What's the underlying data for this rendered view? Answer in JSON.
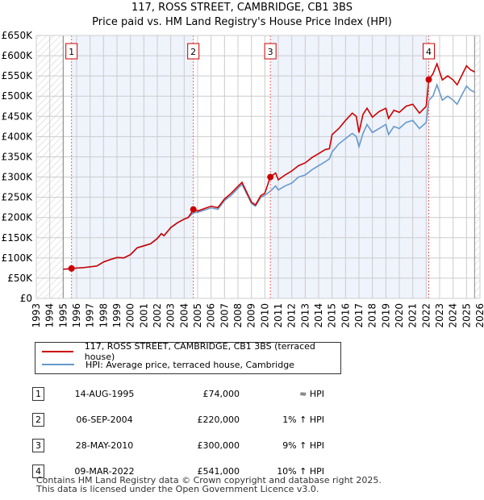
{
  "title_line1": "117, ROSS STREET, CAMBRIDGE, CB1 3BS",
  "title_line2": "Price paid vs. HM Land Registry's House Price Index (HPI)",
  "chart_data": {
    "type": "line",
    "title": "117, ROSS STREET, CAMBRIDGE, CB1 3BS — Price paid vs. HM Land Registry's House Price Index (HPI)",
    "xlim": [
      1993,
      2026
    ],
    "ylim": [
      0,
      650000
    ],
    "x_ticks": [
      "1993",
      "1994",
      "1995",
      "1996",
      "1997",
      "1998",
      "1999",
      "2000",
      "2001",
      "2002",
      "2003",
      "2004",
      "2005",
      "2006",
      "2007",
      "2008",
      "2009",
      "2010",
      "2011",
      "2012",
      "2013",
      "2014",
      "2015",
      "2016",
      "2017",
      "2018",
      "2019",
      "2020",
      "2021",
      "2022",
      "2023",
      "2024",
      "2025",
      "2026"
    ],
    "y_ticks": [
      "£0",
      "£50K",
      "£100K",
      "£150K",
      "£200K",
      "£250K",
      "£300K",
      "£350K",
      "£400K",
      "£450K",
      "£500K",
      "£550K",
      "£600K",
      "£650K"
    ],
    "grid": true,
    "data_range": [
      1995,
      2025.6
    ],
    "shaded_periods": [
      [
        1995.62,
        2004.68
      ],
      [
        2010.41,
        2022.19
      ]
    ],
    "colors": {
      "price": "#cc0000",
      "hpi": "#6699cc",
      "shade": "#eef3fc"
    },
    "series": [
      {
        "name": "117, ROSS STREET, CAMBRIDGE, CB1 3BS (terraced house)",
        "color": "#cc0000",
        "points": [
          [
            1995,
            72
          ],
          [
            1995.6,
            74
          ],
          [
            1996,
            75
          ],
          [
            1996.5,
            76
          ],
          [
            1997,
            78
          ],
          [
            1997.5,
            80
          ],
          [
            1998,
            90
          ],
          [
            1998.5,
            96
          ],
          [
            1999,
            101
          ],
          [
            1999.5,
            100
          ],
          [
            2000,
            108
          ],
          [
            2000.5,
            125
          ],
          [
            2001,
            130
          ],
          [
            2001.5,
            135
          ],
          [
            2002,
            148
          ],
          [
            2002.3,
            160
          ],
          [
            2002.5,
            155
          ],
          [
            2003,
            175
          ],
          [
            2003.5,
            187
          ],
          [
            2004,
            196
          ],
          [
            2004.3,
            200
          ],
          [
            2004.7,
            220
          ],
          [
            2005,
            216
          ],
          [
            2005.5,
            222
          ],
          [
            2006,
            228
          ],
          [
            2006.5,
            224
          ],
          [
            2007,
            246
          ],
          [
            2007.5,
            260
          ],
          [
            2008,
            277
          ],
          [
            2008.3,
            287
          ],
          [
            2008.6,
            266
          ],
          [
            2009,
            238
          ],
          [
            2009.3,
            231
          ],
          [
            2009.7,
            254
          ],
          [
            2010,
            260
          ],
          [
            2010.4,
            300
          ],
          [
            2010.8,
            310
          ],
          [
            2011,
            293
          ],
          [
            2011.5,
            305
          ],
          [
            2012,
            315
          ],
          [
            2012.5,
            328
          ],
          [
            2013,
            335
          ],
          [
            2013.5,
            348
          ],
          [
            2014,
            358
          ],
          [
            2014.5,
            368
          ],
          [
            2014.8,
            370
          ],
          [
            2015,
            405
          ],
          [
            2015.5,
            420
          ],
          [
            2016,
            440
          ],
          [
            2016.5,
            458
          ],
          [
            2016.8,
            450
          ],
          [
            2017,
            410
          ],
          [
            2017.3,
            455
          ],
          [
            2017.6,
            470
          ],
          [
            2018,
            448
          ],
          [
            2018.5,
            462
          ],
          [
            2019,
            470
          ],
          [
            2019.2,
            445
          ],
          [
            2019.6,
            465
          ],
          [
            2020,
            460
          ],
          [
            2020.5,
            475
          ],
          [
            2021,
            480
          ],
          [
            2021.5,
            458
          ],
          [
            2022,
            475
          ],
          [
            2022.2,
            541
          ],
          [
            2022.5,
            555
          ],
          [
            2022.8,
            580
          ],
          [
            2023.2,
            540
          ],
          [
            2023.6,
            550
          ],
          [
            2024,
            540
          ],
          [
            2024.3,
            528
          ],
          [
            2025,
            575
          ],
          [
            2025.3,
            565
          ],
          [
            2025.6,
            560
          ]
        ]
      },
      {
        "name": "HPI: Average price, terraced house, Cambridge",
        "color": "#6699cc",
        "points": [
          [
            1995,
            72
          ],
          [
            1995.6,
            73
          ],
          [
            1996,
            75
          ],
          [
            1996.5,
            76
          ],
          [
            1997,
            78
          ],
          [
            1997.5,
            80
          ],
          [
            1998,
            90
          ],
          [
            1998.5,
            96
          ],
          [
            1999,
            101
          ],
          [
            1999.5,
            100
          ],
          [
            2000,
            108
          ],
          [
            2000.5,
            125
          ],
          [
            2001,
            130
          ],
          [
            2001.5,
            135
          ],
          [
            2002,
            148
          ],
          [
            2002.3,
            160
          ],
          [
            2002.5,
            155
          ],
          [
            2003,
            175
          ],
          [
            2003.5,
            187
          ],
          [
            2004,
            196
          ],
          [
            2004.3,
            200
          ],
          [
            2004.7,
            212
          ],
          [
            2005,
            213
          ],
          [
            2005.5,
            218
          ],
          [
            2006,
            224
          ],
          [
            2006.5,
            220
          ],
          [
            2007,
            242
          ],
          [
            2007.5,
            255
          ],
          [
            2008,
            272
          ],
          [
            2008.3,
            282
          ],
          [
            2008.6,
            262
          ],
          [
            2009,
            235
          ],
          [
            2009.3,
            228
          ],
          [
            2009.7,
            250
          ],
          [
            2010,
            255
          ],
          [
            2010.4,
            265
          ],
          [
            2010.8,
            278
          ],
          [
            2011,
            268
          ],
          [
            2011.5,
            278
          ],
          [
            2012,
            285
          ],
          [
            2012.5,
            300
          ],
          [
            2013,
            305
          ],
          [
            2013.5,
            318
          ],
          [
            2014,
            328
          ],
          [
            2014.5,
            338
          ],
          [
            2014.8,
            345
          ],
          [
            2015,
            362
          ],
          [
            2015.5,
            382
          ],
          [
            2016,
            395
          ],
          [
            2016.5,
            408
          ],
          [
            2016.8,
            400
          ],
          [
            2017,
            375
          ],
          [
            2017.3,
            408
          ],
          [
            2017.6,
            430
          ],
          [
            2018,
            410
          ],
          [
            2018.5,
            420
          ],
          [
            2019,
            430
          ],
          [
            2019.2,
            405
          ],
          [
            2019.6,
            425
          ],
          [
            2020,
            420
          ],
          [
            2020.5,
            435
          ],
          [
            2021,
            440
          ],
          [
            2021.5,
            420
          ],
          [
            2022,
            435
          ],
          [
            2022.2,
            490
          ],
          [
            2022.5,
            500
          ],
          [
            2022.8,
            528
          ],
          [
            2023.2,
            490
          ],
          [
            2023.6,
            500
          ],
          [
            2024,
            490
          ],
          [
            2024.3,
            480
          ],
          [
            2025,
            525
          ],
          [
            2025.3,
            515
          ],
          [
            2025.6,
            510
          ]
        ]
      }
    ],
    "y_unit": "thousand GBP",
    "sales": [
      {
        "label": "1",
        "x": 1995.62,
        "value": 74
      },
      {
        "label": "2",
        "x": 2004.68,
        "value": 220
      },
      {
        "label": "3",
        "x": 2010.41,
        "value": 300
      },
      {
        "label": "4",
        "x": 2022.19,
        "value": 541
      }
    ]
  },
  "legend": {
    "price": "117, ROSS STREET, CAMBRIDGE, CB1 3BS (terraced house)",
    "hpi": "HPI: Average price, terraced house, Cambridge"
  },
  "transactions": [
    {
      "num": "1",
      "date": "14-AUG-1995",
      "price": "£74,000",
      "hpi": "≈ HPI"
    },
    {
      "num": "2",
      "date": "06-SEP-2004",
      "price": "£220,000",
      "hpi": "1% ↑ HPI"
    },
    {
      "num": "3",
      "date": "28-MAY-2010",
      "price": "£300,000",
      "hpi": "9% ↑ HPI"
    },
    {
      "num": "4",
      "date": "09-MAR-2022",
      "price": "£541,000",
      "hpi": "10% ↑ HPI"
    }
  ],
  "footer": {
    "line1": "Contains HM Land Registry data © Crown copyright and database right 2025.",
    "line2": "This data is licensed under the Open Government Licence v3.0."
  }
}
